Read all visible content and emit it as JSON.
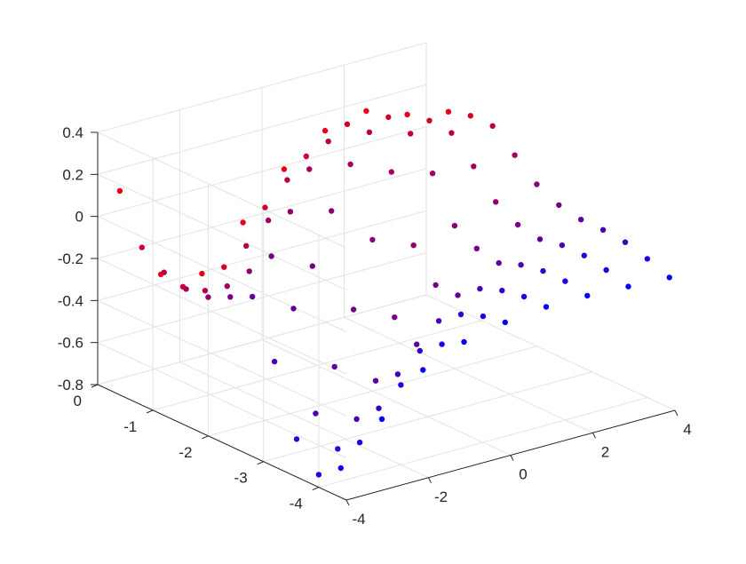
{
  "chart_data": {
    "type": "scatter3d",
    "title": "",
    "xlabel": "",
    "ylabel": "",
    "zlabel": "",
    "grid": true,
    "xlim": [
      -4,
      4
    ],
    "ylim": [
      -4.5,
      0
    ],
    "zlim": [
      -0.8,
      0.4
    ],
    "x_ticks": [
      {
        "value": -4,
        "label": "-4"
      },
      {
        "value": -2,
        "label": "-2"
      },
      {
        "value": 0,
        "label": "0"
      },
      {
        "value": 2,
        "label": "2"
      },
      {
        "value": 4,
        "label": "4"
      }
    ],
    "y_ticks": [
      {
        "value": 0,
        "label": "0"
      },
      {
        "value": -1,
        "label": "-1"
      },
      {
        "value": -2,
        "label": "-2"
      },
      {
        "value": -3,
        "label": "-3"
      },
      {
        "value": -4,
        "label": "-4"
      }
    ],
    "z_ticks": [
      {
        "value": 0.4,
        "label": "0.4"
      },
      {
        "value": 0.2,
        "label": "0.2"
      },
      {
        "value": 0,
        "label": "0"
      },
      {
        "value": -0.2,
        "label": "-0.2"
      },
      {
        "value": -0.4,
        "label": "-0.4"
      },
      {
        "value": -0.6,
        "label": "-0.6"
      },
      {
        "value": -0.8,
        "label": "-0.8"
      }
    ],
    "colormap": {
      "low_y": "#ff0000",
      "high_y": "#0000ff"
    },
    "series": [
      {
        "y": -0.4,
        "x": [
          -4.0,
          -3.0,
          -2.0,
          -1.0,
          0.0,
          1.0,
          2.0,
          3.0,
          4.0
        ],
        "z": [
          0.17,
          -0.28,
          -0.33,
          -0.14,
          0.06,
          0.19,
          0.23,
          0.16,
          0.12
        ]
      },
      {
        "y": -0.8,
        "x": [
          -4.0,
          -3.0,
          -2.0,
          -1.0,
          0.0,
          1.0,
          2.0,
          3.0,
          4.0
        ],
        "z": [
          -0.05,
          -0.29,
          -0.25,
          -0.02,
          0.17,
          0.27,
          0.25,
          0.18,
          0.15
        ]
      },
      {
        "y": -1.2,
        "x": [
          -4.0,
          -3.0,
          -2.0,
          -1.0,
          0.0,
          1.0,
          2.0,
          3.0,
          4.0
        ],
        "z": [
          -0.12,
          -0.26,
          -0.1,
          0.16,
          0.29,
          0.28,
          0.22,
          0.17,
          0.15
        ]
      },
      {
        "y": -1.6,
        "x": [
          -4.0,
          -3.0,
          -2.0,
          -1.0,
          0.0,
          1.0,
          2.0,
          3.0,
          4.0
        ],
        "z": [
          -0.15,
          -0.19,
          0.07,
          0.26,
          0.23,
          0.14,
          0.08,
          0.06,
          0.06
        ]
      },
      {
        "y": -2.0,
        "x": [
          -4.0,
          -3.0,
          -2.0,
          -1.0,
          0.0,
          1.0,
          2.0,
          3.0,
          4.0
        ],
        "z": [
          -0.14,
          -0.07,
          0.16,
          0.11,
          -0.08,
          -0.16,
          -0.12,
          -0.06,
          -0.03
        ]
      },
      {
        "y": -2.4,
        "x": [
          -4.0,
          -3.0,
          -2.0,
          -1.0,
          0.0,
          1.0,
          2.0,
          3.0,
          4.0
        ],
        "z": [
          -0.09,
          0.05,
          -0.05,
          -0.31,
          -0.4,
          -0.3,
          -0.18,
          -0.12,
          -0.08
        ]
      },
      {
        "y": -2.8,
        "x": [
          -4.0,
          -3.0,
          -2.0,
          -1.0,
          0.0,
          1.0,
          2.0,
          3.0,
          4.0
        ],
        "z": [
          -0.04,
          -0.15,
          -0.48,
          -0.6,
          -0.48,
          -0.3,
          -0.2,
          -0.14,
          -0.1
        ]
      },
      {
        "y": -3.2,
        "x": [
          -4.0,
          -3.0,
          -2.0,
          -1.0,
          0.0,
          1.0,
          2.0,
          3.0,
          4.0
        ],
        "z": [
          -0.3,
          -0.6,
          -0.68,
          -0.52,
          -0.32,
          -0.22,
          -0.16,
          -0.12,
          -0.1
        ]
      },
      {
        "y": -3.6,
        "x": [
          -4.0,
          -3.0,
          -2.0,
          -1.0,
          0.0,
          1.0,
          2.0,
          3.0,
          4.0
        ],
        "z": [
          -0.62,
          -0.72,
          -0.58,
          -0.36,
          -0.24,
          -0.18,
          -0.14,
          -0.12,
          -0.11
        ]
      },
      {
        "y": -4.0,
        "x": [
          -4.0,
          -3.0,
          -2.0,
          -1.0,
          0.0,
          1.0,
          2.0,
          3.0,
          4.0
        ],
        "z": [
          -0.74,
          -0.64,
          -0.42,
          -0.28,
          -0.2,
          -0.16,
          -0.14,
          -0.14,
          -0.14
        ]
      },
      {
        "y": -4.4,
        "x": [
          -4.0,
          -3.0,
          -2.0,
          -1.0,
          0.0,
          1.0,
          2.0,
          3.0,
          4.0
        ],
        "z": [
          -0.66,
          -0.48,
          -0.3,
          -0.22,
          -0.18,
          -0.16,
          -0.16,
          -0.17,
          -0.18
        ]
      }
    ]
  }
}
